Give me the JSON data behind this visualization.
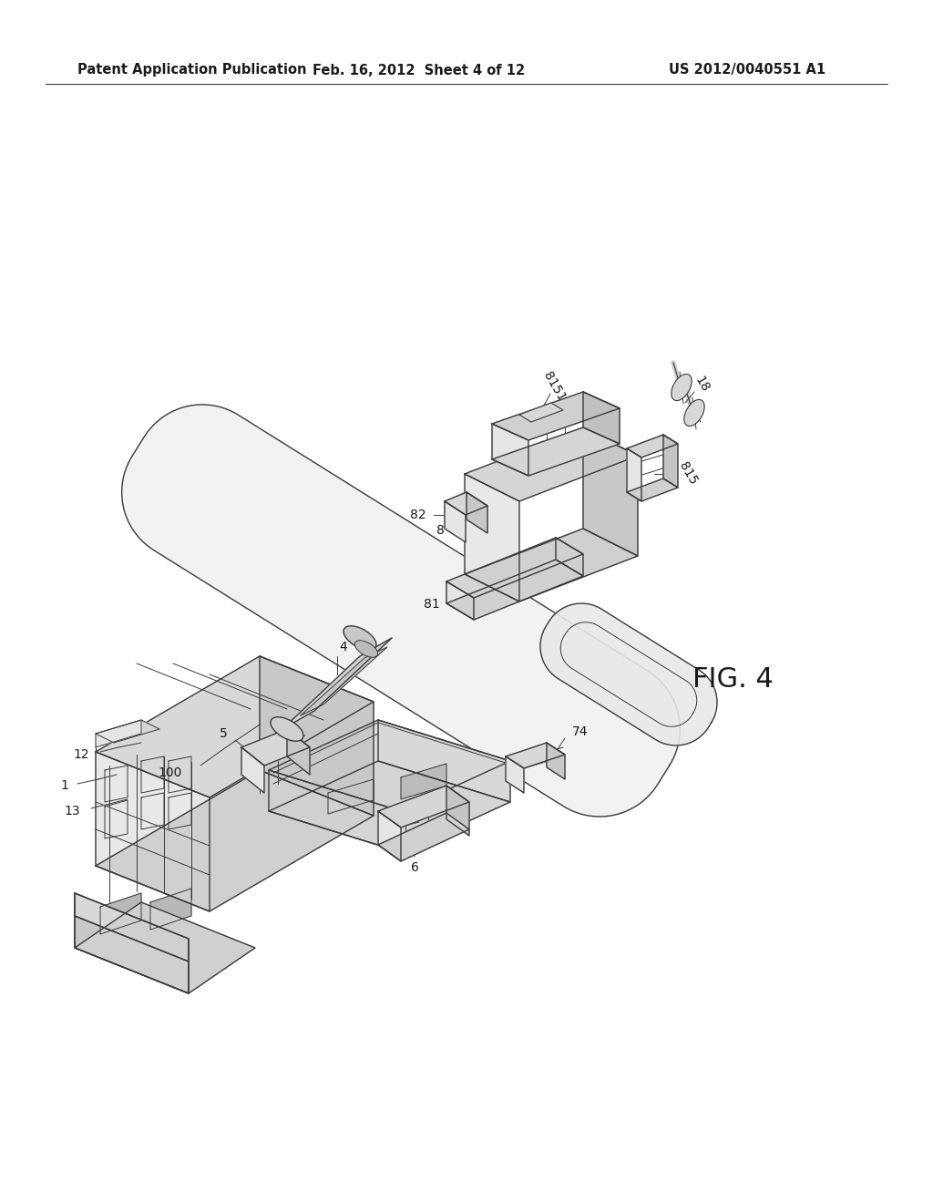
{
  "background_color": "#ffffff",
  "header_left": "Patent Application Publication",
  "header_center": "Feb. 16, 2012  Sheet 4 of 12",
  "header_right": "US 2012/0040551 A1",
  "fig_label": "FIG. 4",
  "line_color": "#3a3a3a",
  "label_color": "#1a1a1a",
  "header_fontsize": 10.5,
  "label_fontsize": 10,
  "fig_label_fontsize": 22
}
